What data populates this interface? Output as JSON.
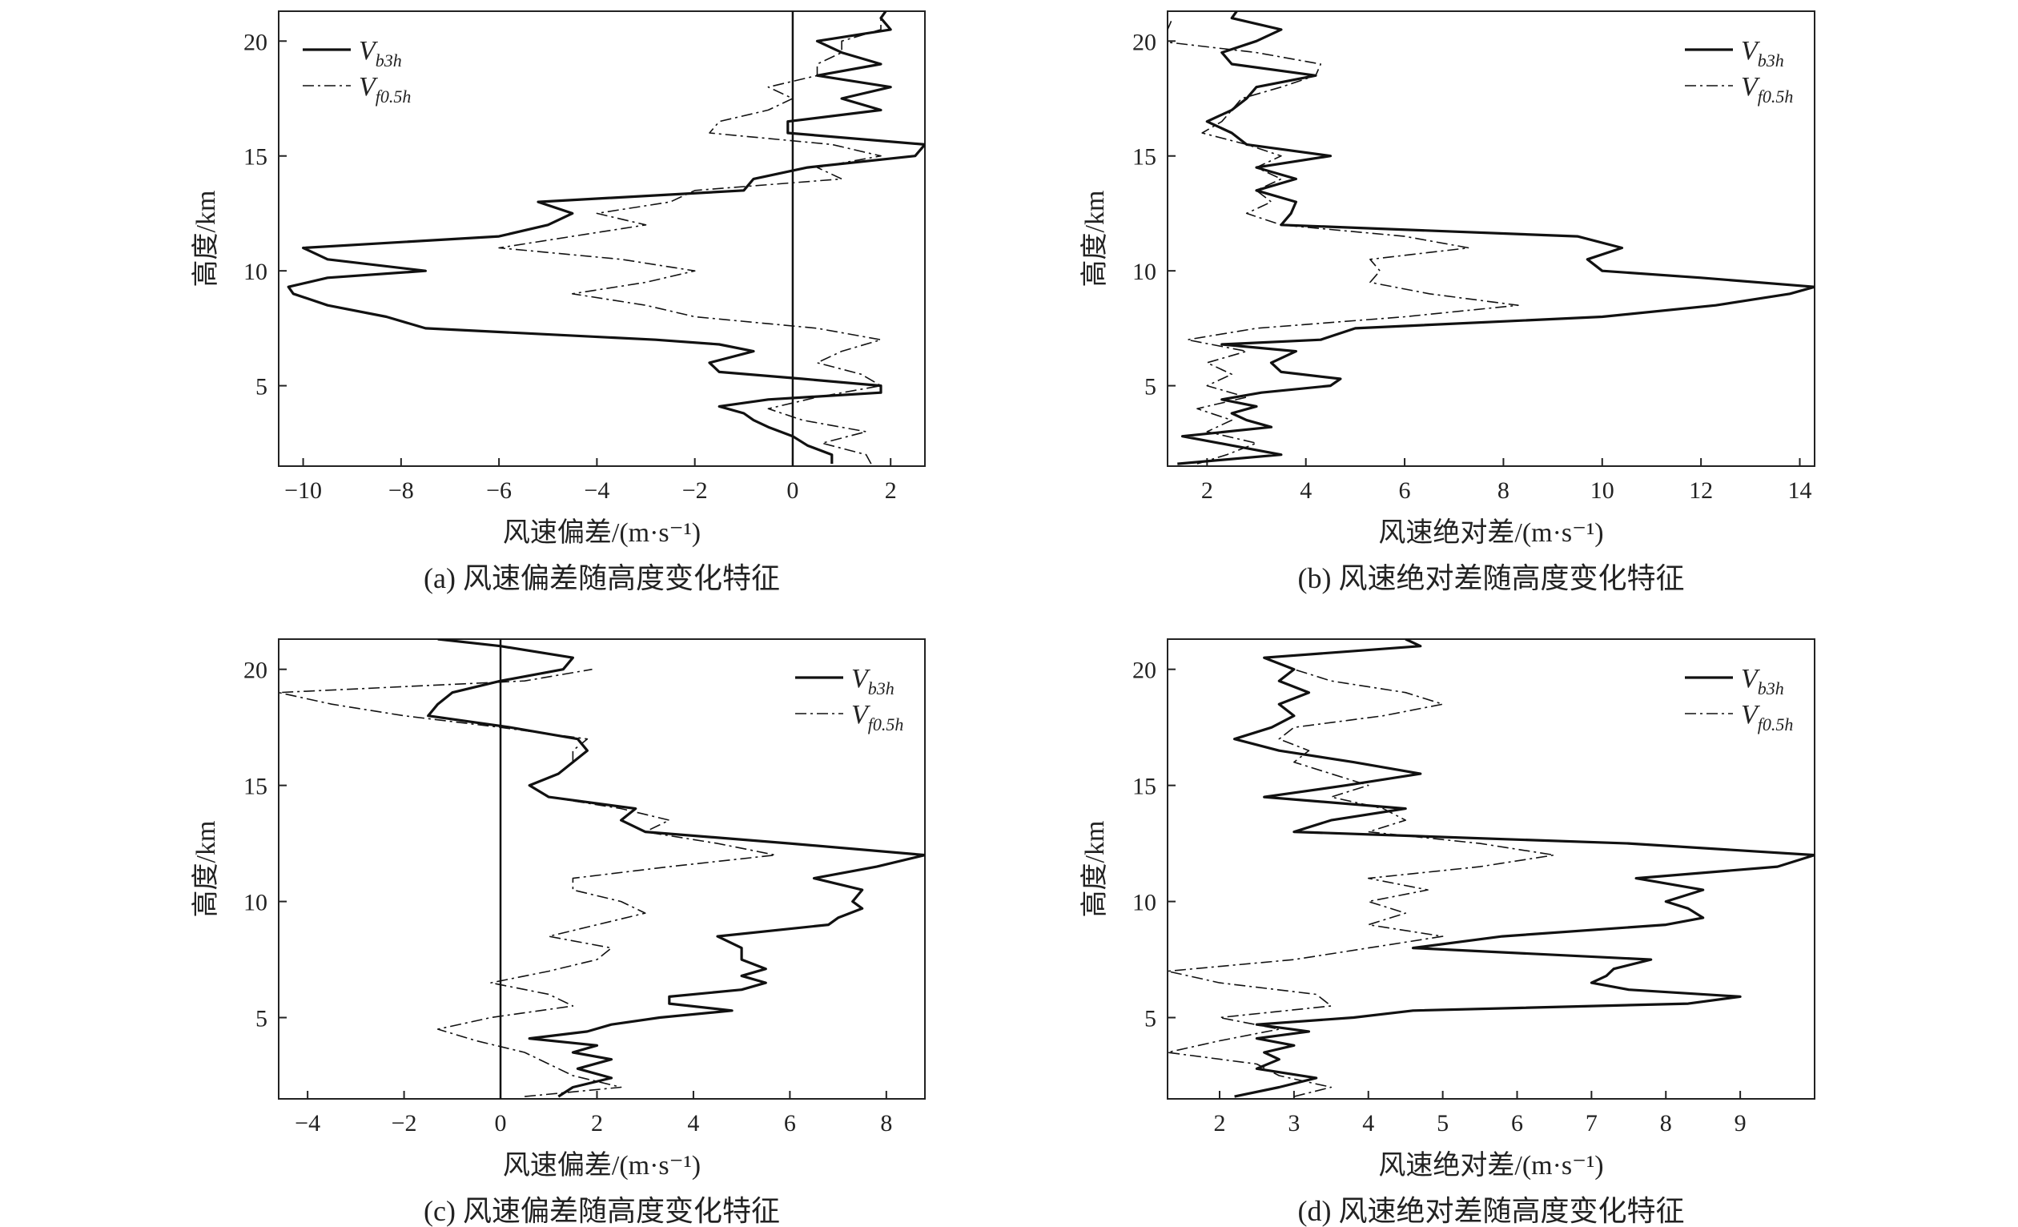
{
  "figure": {
    "panels": [
      {
        "id": "a",
        "caption": "(a) 风速偏差随高度变化特征",
        "xlabel": "风速偏差/(m·s⁻¹)",
        "ylabel": "高度/km",
        "legend_position": "top-left"
      },
      {
        "id": "b",
        "caption": "(b) 风速绝对差随高度变化特征",
        "xlabel": "风速绝对差/(m·s⁻¹)",
        "ylabel": "高度/km",
        "legend_position": "top-right"
      },
      {
        "id": "c",
        "caption": "(c) 风速偏差随高度变化特征",
        "xlabel": "风速偏差/(m·s⁻¹)",
        "ylabel": "高度/km",
        "legend_position": "top-right"
      },
      {
        "id": "d",
        "caption": "(d) 风速绝对差随高度变化特征",
        "xlabel": "风速绝对差/(m·s⁻¹)",
        "ylabel": "高度/km",
        "legend_position": "top-right"
      }
    ]
  },
  "legend_series": [
    {
      "symbol": "V",
      "subscript": "b3h",
      "style": "solid"
    },
    {
      "symbol": "V",
      "subscript": "f0.5h",
      "style": "dash-dot"
    }
  ],
  "colors": {
    "line": "#111111",
    "axis": "#222222"
  },
  "chart_data": [
    {
      "type": "line",
      "title": "(a) 风速偏差随高度变化特征",
      "xlabel": "风速偏差/(m·s⁻¹)",
      "ylabel": "高度/km",
      "xlim": [
        -10.5,
        2.7
      ],
      "ylim": [
        1.5,
        21.3
      ],
      "xticks": [
        -10,
        -8,
        -6,
        -4,
        -2,
        0,
        2
      ],
      "yticks": [
        5,
        10,
        15,
        20
      ],
      "ref_line_x": 0,
      "series": [
        {
          "name": "Vb3h",
          "style": "solid",
          "y": [
            1.6,
            2.0,
            2.4,
            2.8,
            3.2,
            3.5,
            3.8,
            4.1,
            4.4,
            4.7,
            5.0,
            5.3,
            5.6,
            6.0,
            6.5,
            6.8,
            7.0,
            7.5,
            8.0,
            8.5,
            9.0,
            9.3,
            9.7,
            10.0,
            10.5,
            11.0,
            11.5,
            12.0,
            12.5,
            13.0,
            13.5,
            14.0,
            14.5,
            15.0,
            15.5,
            16.0,
            16.5,
            17.0,
            17.5,
            18.0,
            18.5,
            19.0,
            19.5,
            20.0,
            20.5,
            21.0,
            21.3
          ],
          "x": [
            0.8,
            0.8,
            0.3,
            0.0,
            -0.5,
            -0.8,
            -1.0,
            -1.5,
            -0.5,
            1.8,
            1.8,
            0.2,
            -1.5,
            -1.7,
            -0.8,
            -1.5,
            -2.8,
            -7.5,
            -8.3,
            -9.5,
            -10.2,
            -10.3,
            -9.5,
            -7.5,
            -9.5,
            -10.0,
            -6.0,
            -5.0,
            -4.5,
            -5.2,
            -1.0,
            -0.8,
            0.3,
            2.5,
            2.7,
            -0.1,
            -0.1,
            1.8,
            1.0,
            2.0,
            0.5,
            1.8,
            1.0,
            0.5,
            2.0,
            1.8,
            1.9
          ]
        },
        {
          "name": "Vf0.5h",
          "style": "dash-dot",
          "y": [
            1.6,
            2.0,
            2.5,
            3.0,
            3.5,
            4.0,
            4.5,
            5.0,
            5.5,
            6.0,
            6.5,
            7.0,
            7.5,
            8.0,
            8.5,
            9.0,
            9.5,
            10.0,
            10.5,
            11.0,
            11.5,
            12.0,
            12.5,
            13.0,
            13.5,
            14.0,
            14.5,
            15.0,
            15.5,
            16.0,
            16.5,
            17.0,
            17.5,
            18.0,
            18.5,
            19.0,
            19.5,
            20.0,
            20.5,
            21.0
          ],
          "x": [
            1.6,
            1.5,
            0.6,
            1.5,
            0.2,
            -0.5,
            0.5,
            1.8,
            1.4,
            0.5,
            1.0,
            1.8,
            0.5,
            -2.0,
            -3.0,
            -4.5,
            -3.0,
            -2.0,
            -3.5,
            -6.0,
            -4.5,
            -3.0,
            -4.0,
            -2.5,
            -2.0,
            1.0,
            0.5,
            1.8,
            0.8,
            -1.7,
            -1.5,
            -0.5,
            0.0,
            -0.5,
            0.5,
            0.5,
            1.0,
            1.0,
            1.8,
            1.8
          ]
        }
      ]
    },
    {
      "type": "line",
      "title": "(b) 风速绝对差随高度变化特征",
      "xlabel": "风速绝对差/(m·s⁻¹)",
      "ylabel": "高度/km",
      "xlim": [
        1.2,
        14.3
      ],
      "ylim": [
        1.5,
        21.3
      ],
      "xticks": [
        2,
        4,
        6,
        8,
        10,
        12,
        14
      ],
      "yticks": [
        5,
        10,
        15,
        20
      ],
      "series": [
        {
          "name": "Vb3h",
          "style": "solid",
          "y": [
            1.6,
            2.0,
            2.4,
            2.8,
            3.2,
            3.5,
            3.8,
            4.1,
            4.4,
            4.7,
            5.0,
            5.3,
            5.6,
            6.0,
            6.5,
            6.8,
            7.0,
            7.5,
            8.0,
            8.5,
            9.0,
            9.3,
            9.7,
            10.0,
            10.5,
            11.0,
            11.5,
            12.0,
            12.5,
            13.0,
            13.5,
            14.0,
            14.5,
            15.0,
            15.5,
            16.0,
            16.5,
            17.0,
            17.5,
            18.0,
            18.5,
            19.0,
            19.5,
            20.0,
            20.5,
            21.0,
            21.3
          ],
          "x": [
            1.4,
            3.5,
            2.5,
            1.5,
            3.3,
            2.8,
            2.5,
            3.0,
            2.3,
            3.1,
            4.5,
            4.7,
            3.5,
            3.3,
            3.8,
            2.3,
            4.3,
            5.0,
            10.0,
            12.3,
            13.8,
            14.3,
            12.0,
            10.0,
            9.7,
            10.4,
            9.5,
            3.5,
            3.7,
            3.8,
            3.0,
            3.8,
            3.0,
            4.5,
            2.8,
            2.5,
            2.0,
            2.5,
            2.8,
            3.0,
            4.2,
            2.5,
            2.3,
            3.0,
            3.5,
            2.5,
            2.6
          ]
        },
        {
          "name": "Vf0.5h",
          "style": "dash-dot",
          "y": [
            1.6,
            2.0,
            2.5,
            3.0,
            3.5,
            4.0,
            4.5,
            5.0,
            5.5,
            6.0,
            6.5,
            7.0,
            7.5,
            8.0,
            8.5,
            9.0,
            9.5,
            10.0,
            10.5,
            11.0,
            11.5,
            12.0,
            12.5,
            13.0,
            13.5,
            14.0,
            14.5,
            15.0,
            15.5,
            16.0,
            16.5,
            17.0,
            17.5,
            18.0,
            18.5,
            19.0,
            19.5,
            20.0,
            20.5,
            21.0
          ],
          "x": [
            1.8,
            2.4,
            3.0,
            2.0,
            2.5,
            1.8,
            2.8,
            2.0,
            2.5,
            2.0,
            2.8,
            1.6,
            3.0,
            6.0,
            8.3,
            6.5,
            5.3,
            5.5,
            5.3,
            7.3,
            6.0,
            3.5,
            2.8,
            3.3,
            3.0,
            3.5,
            3.0,
            3.5,
            2.8,
            1.9,
            2.3,
            2.5,
            2.7,
            3.5,
            4.2,
            4.3,
            3.0,
            1.0,
            1.2,
            1.3
          ]
        }
      ]
    },
    {
      "type": "line",
      "title": "(c) 风速偏差随高度变化特征",
      "xlabel": "风速偏差/(m·s⁻¹)",
      "ylabel": "高度/km",
      "xlim": [
        -4.6,
        8.8
      ],
      "ylim": [
        1.5,
        21.3
      ],
      "xticks": [
        -4,
        -2,
        0,
        2,
        4,
        6,
        8
      ],
      "yticks": [
        5,
        10,
        15,
        20
      ],
      "ref_line_x": 0,
      "series": [
        {
          "name": "Vb3h",
          "style": "solid",
          "y": [
            1.6,
            2.0,
            2.4,
            2.8,
            3.2,
            3.5,
            3.8,
            4.1,
            4.4,
            4.7,
            5.0,
            5.3,
            5.6,
            5.9,
            6.2,
            6.5,
            6.8,
            7.1,
            7.5,
            8.0,
            8.5,
            9.0,
            9.3,
            9.7,
            10.0,
            10.5,
            11.0,
            11.5,
            12.0,
            12.5,
            13.0,
            13.5,
            14.0,
            14.5,
            15.0,
            15.5,
            16.0,
            16.5,
            17.0,
            17.5,
            18.0,
            18.5,
            19.0,
            19.5,
            20.0,
            20.5,
            21.0,
            21.3
          ],
          "x": [
            1.2,
            1.5,
            2.3,
            1.6,
            2.3,
            1.5,
            2.0,
            0.6,
            1.8,
            2.3,
            3.3,
            4.8,
            3.5,
            3.5,
            5.0,
            5.5,
            5.0,
            5.5,
            5.0,
            5.0,
            4.5,
            6.8,
            7.0,
            7.5,
            7.3,
            7.5,
            6.5,
            7.8,
            8.8,
            6.0,
            3.0,
            2.5,
            2.8,
            1.0,
            0.6,
            1.2,
            1.5,
            1.8,
            1.6,
            0.2,
            -1.5,
            -1.3,
            -1.0,
            0.0,
            1.3,
            1.5,
            0.0,
            -1.3
          ]
        },
        {
          "name": "Vf0.5h",
          "style": "dash-dot",
          "y": [
            1.6,
            2.0,
            2.5,
            3.0,
            3.5,
            4.0,
            4.5,
            5.0,
            5.5,
            6.0,
            6.5,
            7.0,
            7.5,
            8.0,
            8.5,
            9.0,
            9.5,
            10.0,
            10.5,
            11.0,
            11.5,
            12.0,
            12.5,
            13.0,
            13.5,
            14.0,
            14.5,
            15.0,
            15.5,
            16.0,
            16.5,
            17.0,
            17.5,
            18.0,
            18.5,
            19.0,
            19.5,
            20.0
          ],
          "x": [
            0.5,
            2.5,
            1.5,
            1.0,
            0.5,
            -0.5,
            -1.3,
            -0.2,
            1.5,
            1.0,
            -0.2,
            1.0,
            2.0,
            2.3,
            1.0,
            2.0,
            3.0,
            2.5,
            1.5,
            1.5,
            3.5,
            5.7,
            4.5,
            3.0,
            3.5,
            2.5,
            1.0,
            0.6,
            1.2,
            1.5,
            1.5,
            1.8,
            0.0,
            -2.0,
            -3.5,
            -4.6,
            0.5,
            1.9
          ]
        }
      ]
    },
    {
      "type": "line",
      "title": "(d) 风速绝对差随高度变化特征",
      "xlabel": "风速绝对差/(m·s⁻¹)",
      "ylabel": "高度/km",
      "xlim": [
        1.3,
        10.0
      ],
      "ylim": [
        1.5,
        21.3
      ],
      "xticks": [
        2,
        3,
        4,
        5,
        6,
        7,
        8,
        9
      ],
      "yticks": [
        5,
        10,
        15,
        20
      ],
      "series": [
        {
          "name": "Vb3h",
          "style": "solid",
          "y": [
            1.6,
            2.0,
            2.4,
            2.8,
            3.2,
            3.5,
            3.8,
            4.1,
            4.4,
            4.7,
            5.0,
            5.3,
            5.6,
            5.9,
            6.2,
            6.5,
            6.8,
            7.1,
            7.5,
            8.0,
            8.5,
            9.0,
            9.3,
            9.7,
            10.0,
            10.5,
            11.0,
            11.5,
            12.0,
            12.5,
            13.0,
            13.5,
            14.0,
            14.5,
            15.0,
            15.5,
            16.0,
            16.5,
            17.0,
            17.5,
            18.0,
            18.5,
            19.0,
            19.5,
            20.0,
            20.5,
            21.0,
            21.3
          ],
          "x": [
            2.2,
            2.8,
            3.3,
            2.5,
            2.8,
            2.6,
            3.0,
            2.5,
            3.2,
            2.5,
            3.8,
            4.6,
            8.3,
            9.0,
            7.5,
            7.0,
            7.2,
            7.3,
            7.8,
            4.6,
            5.8,
            8.0,
            8.5,
            8.3,
            8.0,
            8.5,
            7.6,
            9.5,
            10.0,
            7.5,
            3.0,
            3.5,
            4.5,
            2.6,
            3.7,
            4.7,
            3.8,
            2.8,
            2.2,
            2.7,
            3.0,
            2.8,
            3.2,
            2.8,
            3.0,
            2.6,
            4.7,
            4.5
          ]
        },
        {
          "name": "Vf0.5h",
          "style": "dash-dot",
          "y": [
            1.6,
            2.0,
            2.5,
            3.0,
            3.5,
            4.0,
            4.5,
            5.0,
            5.5,
            6.0,
            6.5,
            7.0,
            7.5,
            8.0,
            8.5,
            9.0,
            9.5,
            10.0,
            10.5,
            11.0,
            11.5,
            12.0,
            12.5,
            13.0,
            13.5,
            14.0,
            14.5,
            15.0,
            15.5,
            16.0,
            16.5,
            17.0,
            17.5,
            18.0,
            18.5,
            19.0,
            19.5,
            20.0
          ],
          "x": [
            3.0,
            3.5,
            2.8,
            2.5,
            1.3,
            2.0,
            2.8,
            2.0,
            3.5,
            3.3,
            2.0,
            1.3,
            3.0,
            4.0,
            5.0,
            4.0,
            4.5,
            4.0,
            4.8,
            4.0,
            5.5,
            6.5,
            5.5,
            4.0,
            4.5,
            4.2,
            3.5,
            4.0,
            3.5,
            3.0,
            3.2,
            2.8,
            3.0,
            4.2,
            5.0,
            4.5,
            3.5,
            3.0
          ]
        }
      ]
    }
  ]
}
